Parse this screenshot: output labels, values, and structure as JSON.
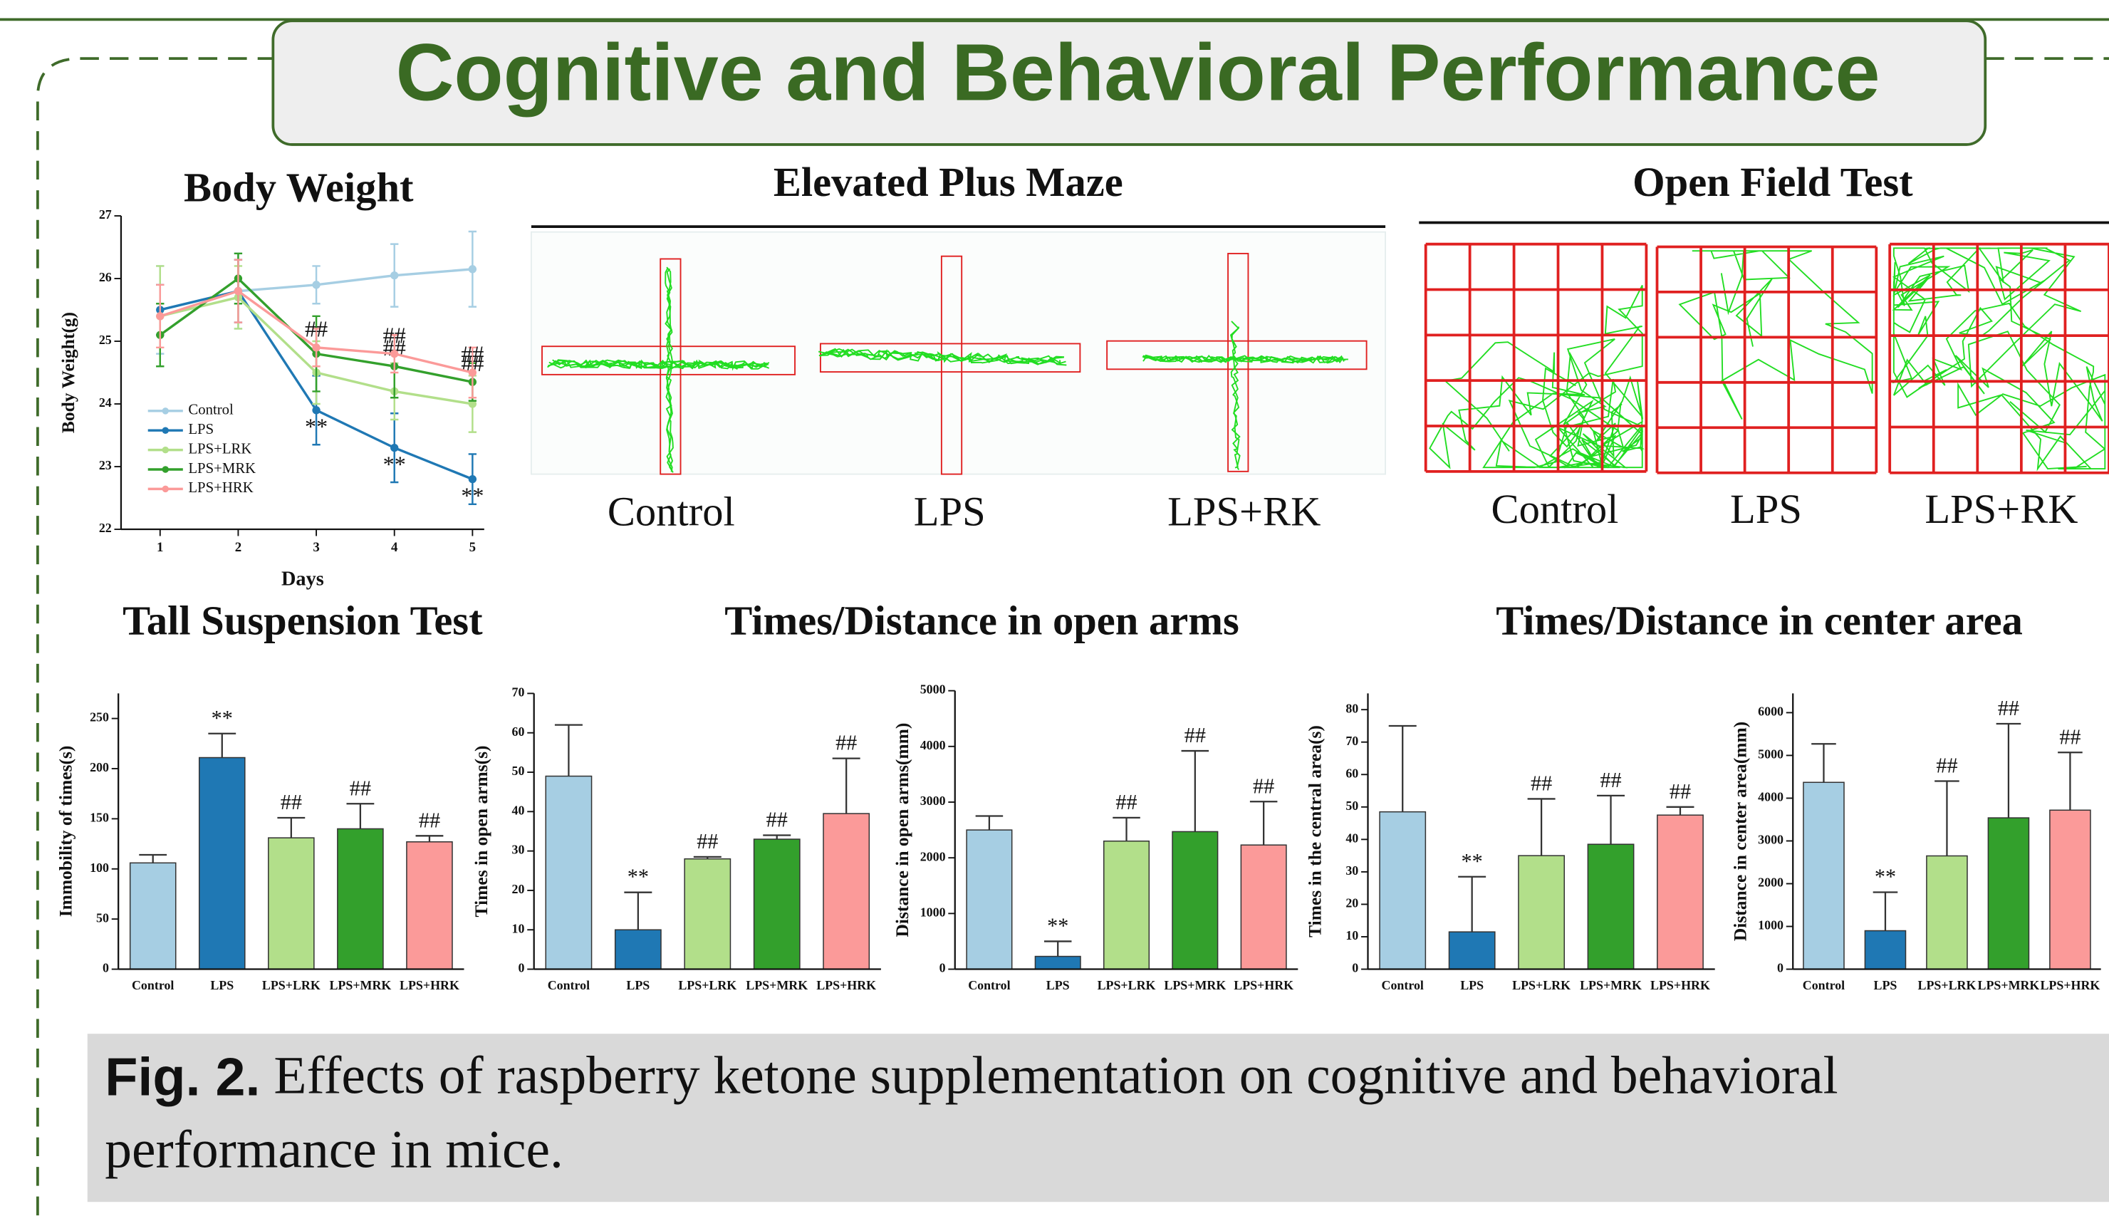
{
  "title": "Cognitive and Behavioral Performance",
  "maze": {
    "title": "Elevated Plus Maze",
    "labels": [
      "Control",
      "LPS",
      "LPS+RK"
    ]
  },
  "open_field": {
    "title": "Open Field Test",
    "labels": [
      "Control",
      "LPS",
      "LPS+RK"
    ]
  },
  "headings": [
    "Tall Suspension Test",
    "Times/Distance in open arms",
    "Times/Distance in center area"
  ],
  "caption": {
    "label": "Fig. 2.",
    "lines": [
      "Effects of raspberry ketone supplementation on cognitive and behavioral",
      "performance in mice."
    ]
  },
  "chart_data": [
    {
      "type": "line",
      "title": "Body Weight",
      "x_label": "Days",
      "y_label": "Body Weight(g)",
      "x": [
        1,
        2,
        3,
        4,
        5
      ],
      "xlim": [
        0.5,
        5.15
      ],
      "xticks": [
        1,
        2,
        3,
        4,
        5
      ],
      "ylim": [
        22,
        27
      ],
      "yticks": [
        22,
        23,
        24,
        25,
        26,
        27
      ],
      "legend": "lower left",
      "series": [
        {
          "name": "Control",
          "color": "#a6cee3",
          "values": [
            25.5,
            25.8,
            25.9,
            26.05,
            26.15
          ],
          "errors": [
            0.7,
            0.6,
            0.3,
            0.5,
            0.6
          ],
          "annotations": [
            null,
            null,
            null,
            null,
            null
          ]
        },
        {
          "name": "LPS",
          "color": "#1f78b4",
          "values": [
            25.5,
            25.8,
            23.9,
            23.3,
            22.8
          ],
          "errors": [
            0.4,
            0.5,
            0.55,
            0.55,
            0.4
          ],
          "annotations": [
            null,
            null,
            "**",
            "**",
            "**"
          ]
        },
        {
          "name": "LPS+LRK",
          "color": "#b2df8a",
          "values": [
            25.4,
            25.7,
            24.5,
            24.2,
            24.0
          ],
          "errors": [
            0.8,
            0.5,
            0.5,
            0.45,
            0.45
          ],
          "annotations": [
            null,
            null,
            null,
            null,
            null
          ]
        },
        {
          "name": "LPS+MRK",
          "color": "#33a02c",
          "values": [
            25.1,
            26.0,
            24.8,
            24.6,
            24.35
          ],
          "errors": [
            0.5,
            0.4,
            0.6,
            0.5,
            0.3
          ],
          "annotations": [
            null,
            null,
            null,
            "##",
            "##"
          ]
        },
        {
          "name": "LPS+HRK",
          "color": "#fb9a99",
          "values": [
            25.4,
            25.8,
            24.9,
            24.8,
            24.5
          ],
          "errors": [
            0.5,
            0.5,
            0.3,
            0.3,
            0.4
          ],
          "annotations": [
            null,
            null,
            "##",
            "##",
            "##"
          ]
        }
      ]
    },
    {
      "type": "bar",
      "y_label": "Immobility of times(s)",
      "categories": [
        "Control",
        "LPS",
        "LPS+LRK",
        "LPS+MRK",
        "LPS+HRK"
      ],
      "values": [
        106,
        211,
        131,
        140,
        127
      ],
      "errors": [
        8,
        24,
        20,
        25,
        6
      ],
      "annotations": [
        null,
        "**",
        "##",
        "##",
        "##"
      ],
      "colors": [
        "#a6cee3",
        "#1f78b4",
        "#b2df8a",
        "#33a02c",
        "#fb9a99"
      ],
      "ylim": [
        0,
        275
      ],
      "yticks": [
        0,
        50,
        100,
        150,
        200,
        250
      ]
    },
    {
      "type": "bar",
      "y_label": "Times in open arms(s)",
      "categories": [
        "Control",
        "LPS",
        "LPS+LRK",
        "LPS+MRK",
        "LPS+HRK"
      ],
      "values": [
        49,
        10,
        28,
        33,
        39.5
      ],
      "errors": [
        13,
        9.5,
        0.5,
        1,
        14
      ],
      "annotations": [
        null,
        "**",
        "##",
        "##",
        "##"
      ],
      "colors": [
        "#a6cee3",
        "#1f78b4",
        "#b2df8a",
        "#33a02c",
        "#fb9a99"
      ],
      "ylim": [
        0,
        70
      ],
      "yticks": [
        0,
        10,
        20,
        30,
        40,
        50,
        60,
        70
      ]
    },
    {
      "type": "bar",
      "y_label": "Distance in open arms(mm)",
      "categories": [
        "Control",
        "LPS",
        "LPS+LRK",
        "LPS+MRK",
        "LPS+HRK"
      ],
      "values": [
        2500,
        230,
        2300,
        2470,
        2230
      ],
      "errors": [
        250,
        270,
        420,
        1450,
        780
      ],
      "annotations": [
        null,
        "**",
        "##",
        "##",
        "##"
      ],
      "colors": [
        "#a6cee3",
        "#1f78b4",
        "#b2df8a",
        "#33a02c",
        "#fb9a99"
      ],
      "ylim": [
        0,
        5000
      ],
      "yticks": [
        0,
        1000,
        2000,
        3000,
        4000,
        5000
      ]
    },
    {
      "type": "bar",
      "y_label": "Times in the central area(s)",
      "categories": [
        "Control",
        "LPS",
        "LPS+LRK",
        "LPS+MRK",
        "LPS+HRK"
      ],
      "values": [
        48.5,
        11.5,
        35,
        38.5,
        47.5
      ],
      "errors": [
        26.5,
        17,
        17.5,
        15,
        2.5
      ],
      "annotations": [
        null,
        "**",
        "##",
        "##",
        "##"
      ],
      "colors": [
        "#a6cee3",
        "#1f78b4",
        "#b2df8a",
        "#33a02c",
        "#fb9a99"
      ],
      "ylim": [
        0,
        85
      ],
      "yticks": [
        0,
        10,
        20,
        30,
        40,
        50,
        60,
        70,
        80
      ]
    },
    {
      "type": "bar",
      "y_label": "Distance in center area(mm)",
      "categories": [
        "Control",
        "LPS",
        "LPS+LRK",
        "LPS+MRK",
        "LPS+HRK"
      ],
      "values": [
        4370,
        900,
        2650,
        3540,
        3720
      ],
      "errors": [
        900,
        900,
        1750,
        2200,
        1350
      ],
      "annotations": [
        null,
        "**",
        "##",
        "##",
        "##"
      ],
      "colors": [
        "#a6cee3",
        "#1f78b4",
        "#b2df8a",
        "#33a02c",
        "#fb9a99"
      ],
      "ylim": [
        0,
        6450
      ],
      "yticks": [
        0,
        1000,
        2000,
        3000,
        4000,
        5000,
        6000
      ]
    }
  ]
}
